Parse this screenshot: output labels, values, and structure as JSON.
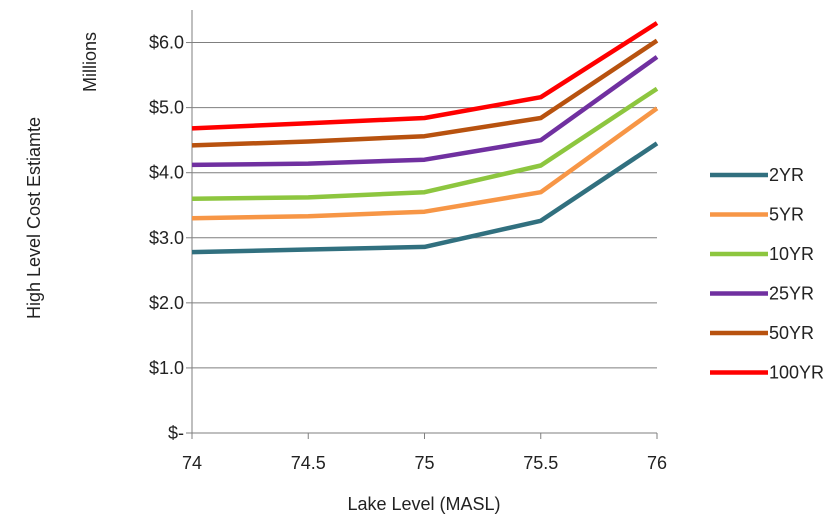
{
  "chart_data": {
    "type": "line",
    "title": "",
    "xlabel": "Lake Level (MASL)",
    "ylabel": "High Level Cost Estiamte",
    "units_label": "Millions",
    "x": [
      74,
      74.5,
      75,
      75.5,
      76
    ],
    "x_tick_labels": [
      "74",
      "74.5",
      "75",
      "75.5",
      "76"
    ],
    "xlim": [
      74,
      76
    ],
    "ylim": [
      0,
      6.5
    ],
    "y_ticks": [
      0,
      1,
      2,
      3,
      4,
      5,
      6
    ],
    "y_tick_labels": [
      "$-",
      "$1.0",
      "$2.0",
      "$3.0",
      "$4.0",
      "$5.0",
      "$6.0"
    ],
    "grid": "horizontal",
    "legend_position": "right",
    "series": [
      {
        "name": "2YR",
        "color": "#31707f",
        "values": [
          2.78,
          2.82,
          2.86,
          3.26,
          4.45
        ]
      },
      {
        "name": "5YR",
        "color": "#f79646",
        "values": [
          3.3,
          3.33,
          3.4,
          3.7,
          4.99
        ]
      },
      {
        "name": "10YR",
        "color": "#8dc63f",
        "values": [
          3.6,
          3.62,
          3.7,
          4.11,
          5.29
        ]
      },
      {
        "name": "25YR",
        "color": "#7030a0",
        "values": [
          4.12,
          4.14,
          4.2,
          4.5,
          5.78
        ]
      },
      {
        "name": "50YR",
        "color": "#b8520f",
        "values": [
          4.42,
          4.48,
          4.56,
          4.84,
          6.03
        ]
      },
      {
        "name": "100YR",
        "color": "#ff0000",
        "values": [
          4.68,
          4.76,
          4.84,
          5.16,
          6.3
        ]
      }
    ]
  }
}
